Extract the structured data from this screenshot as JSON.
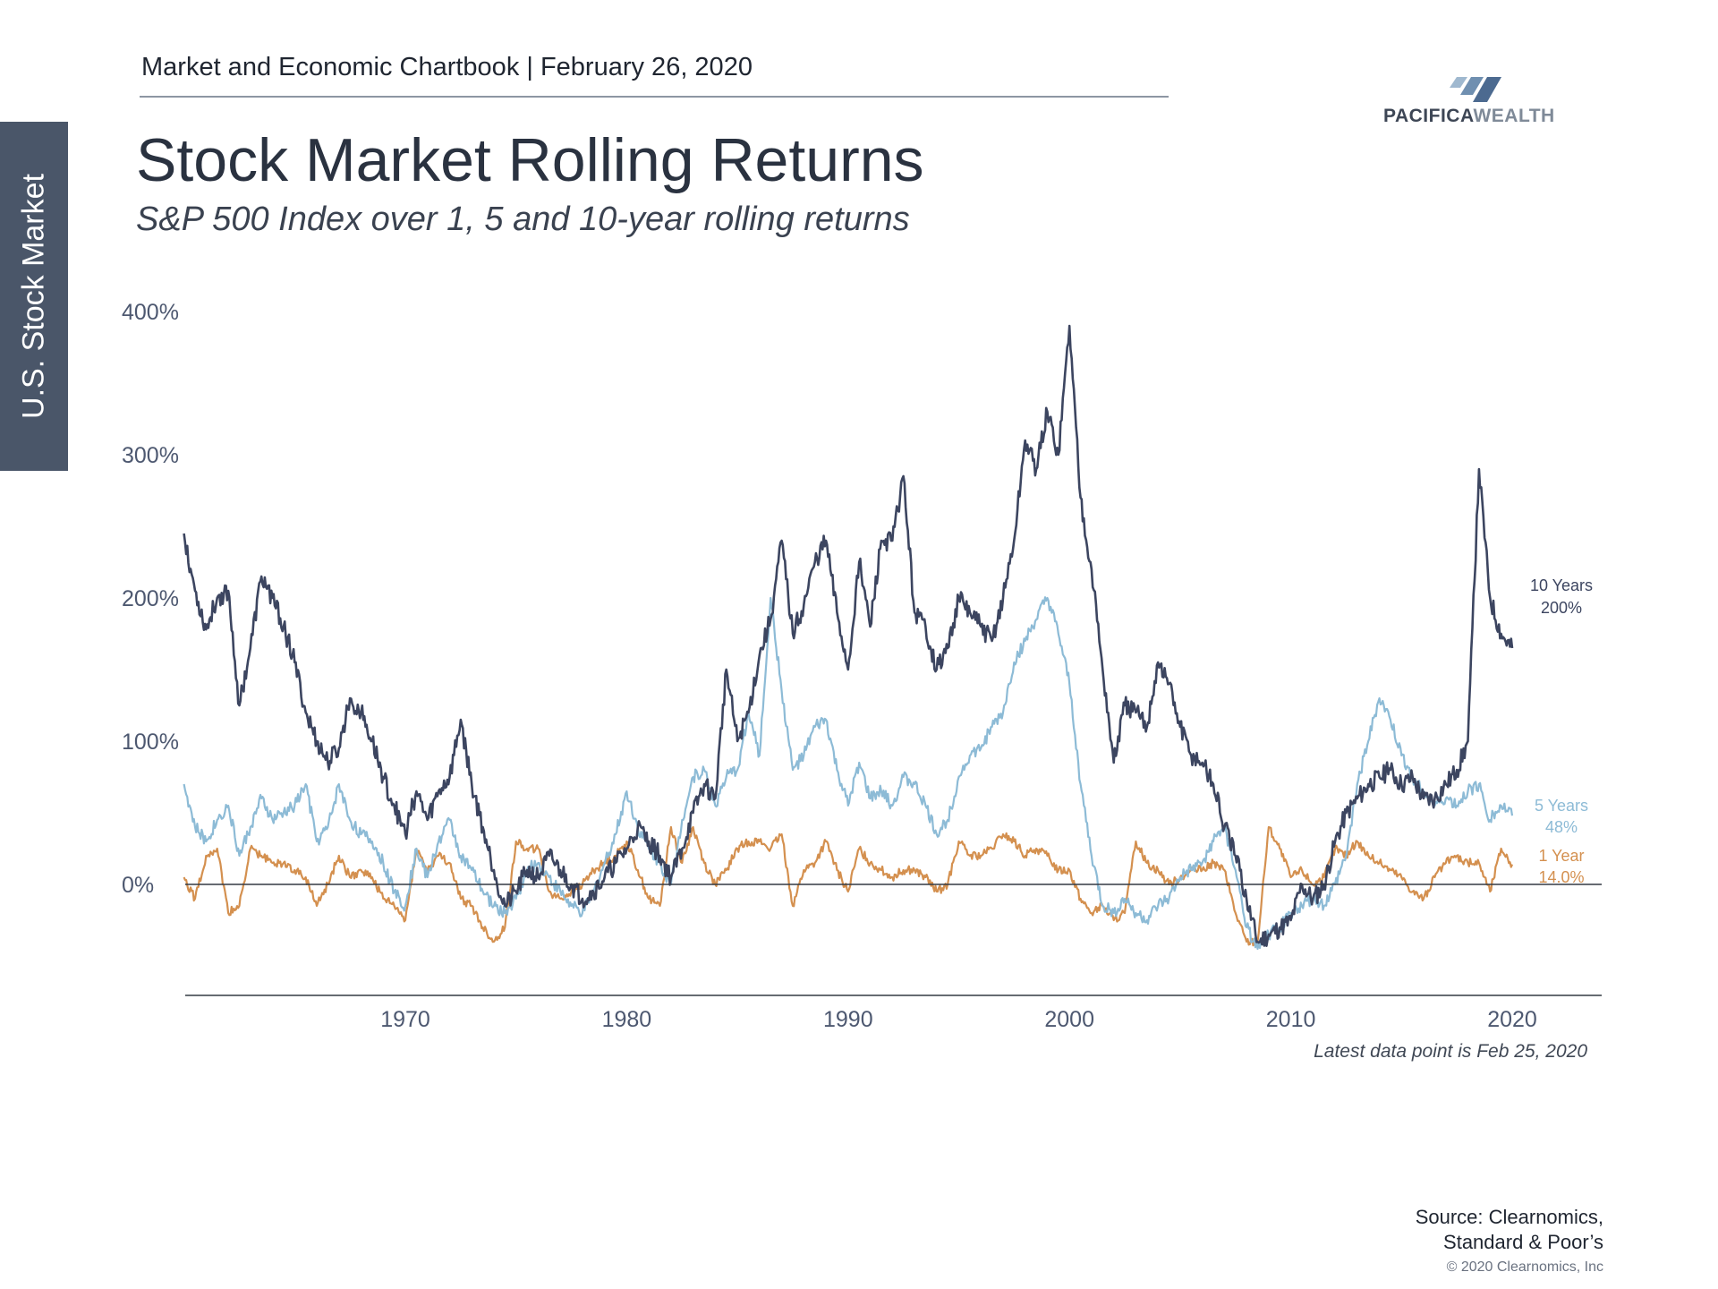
{
  "header": {
    "text": "Market and Economic Chartbook | February 26, 2020"
  },
  "sidebar": {
    "label": "U.S. Stock Market"
  },
  "logo": {
    "brand": "PACIFICA",
    "brand_accent": "WEALTH"
  },
  "title": "Stock Market Rolling Returns",
  "subtitle": "S&P 500 Index over 1, 5 and 10-year rolling returns",
  "footnote": "Latest data point is Feb 25, 2020",
  "source": {
    "line1": "Source: Clearnomics,",
    "line2": "Standard & Poor’s"
  },
  "copyright": "© 2020 Clearnomics, Inc",
  "colors": {
    "ten_year": "#3c4560",
    "five_year": "#8dbbd6",
    "one_year": "#d4904f",
    "axis": "#333a44",
    "tick_label": "#4d5870",
    "sidebar": "#4a5669"
  },
  "chart_data": {
    "type": "line",
    "title": "Stock Market Rolling Returns",
    "ylim": [
      -75,
      400
    ],
    "y_ticks": [
      0,
      100,
      200,
      300,
      400
    ],
    "y_tick_labels": [
      "0%",
      "100%",
      "200%",
      "300%",
      "400%"
    ],
    "xlim": [
      1960,
      2024
    ],
    "x_ticks": [
      1970,
      1980,
      1990,
      2000,
      2010,
      2020
    ],
    "x_tick_labels": [
      "1970",
      "1980",
      "1990",
      "2000",
      "2010",
      "2020"
    ],
    "grid": false,
    "zero_line": true,
    "series": [
      {
        "name": "10 Years",
        "end_label": "200%",
        "x": [
          1960.0,
          1960.5,
          1961.0,
          1961.5,
          1962.0,
          1962.5,
          1963.0,
          1963.5,
          1964.0,
          1964.5,
          1965.0,
          1965.5,
          1966.0,
          1966.5,
          1967.0,
          1967.5,
          1968.0,
          1968.5,
          1969.0,
          1969.5,
          1970.0,
          1970.5,
          1971.0,
          1971.5,
          1972.0,
          1972.5,
          1973.0,
          1973.5,
          1974.0,
          1974.5,
          1975.0,
          1975.5,
          1976.0,
          1976.5,
          1977.0,
          1977.5,
          1978.0,
          1978.5,
          1979.0,
          1979.5,
          1980.0,
          1980.5,
          1981.0,
          1981.5,
          1982.0,
          1982.5,
          1983.0,
          1983.5,
          1984.0,
          1984.5,
          1985.0,
          1985.5,
          1986.0,
          1986.5,
          1987.0,
          1987.5,
          1988.0,
          1988.5,
          1989.0,
          1989.5,
          1990.0,
          1990.5,
          1991.0,
          1991.5,
          1992.0,
          1992.5,
          1993.0,
          1993.5,
          1994.0,
          1994.5,
          1995.0,
          1995.5,
          1996.0,
          1996.5,
          1997.0,
          1997.5,
          1998.0,
          1998.5,
          1999.0,
          1999.5,
          2000.0,
          2000.5,
          2001.0,
          2001.5,
          2002.0,
          2002.5,
          2003.0,
          2003.5,
          2004.0,
          2004.5,
          2005.0,
          2005.5,
          2006.0,
          2006.5,
          2007.0,
          2007.5,
          2008.0,
          2008.5,
          2009.0,
          2009.5,
          2010.0,
          2010.5,
          2011.0,
          2011.5,
          2012.0,
          2012.5,
          2013.0,
          2013.5,
          2014.0,
          2014.5,
          2015.0,
          2015.5,
          2016.0,
          2016.5,
          2017.0,
          2017.5,
          2018.0,
          2018.5,
          2019.0,
          2019.5,
          2020.0
        ],
        "values": [
          245,
          205,
          178,
          200,
          205,
          125,
          165,
          215,
          200,
          180,
          155,
          120,
          100,
          85,
          95,
          130,
          120,
          100,
          75,
          55,
          35,
          65,
          45,
          65,
          75,
          115,
          70,
          40,
          10,
          -15,
          -5,
          10,
          5,
          20,
          10,
          0,
          -10,
          -5,
          5,
          15,
          25,
          40,
          30,
          20,
          5,
          25,
          50,
          70,
          60,
          150,
          100,
          120,
          160,
          185,
          240,
          175,
          195,
          225,
          240,
          190,
          150,
          225,
          180,
          240,
          240,
          285,
          190,
          180,
          150,
          165,
          200,
          190,
          180,
          170,
          200,
          240,
          310,
          290,
          330,
          300,
          390,
          270,
          220,
          150,
          85,
          125,
          120,
          110,
          155,
          140,
          110,
          90,
          85,
          70,
          40,
          20,
          -10,
          -40,
          -35,
          -30,
          -25,
          0,
          -10,
          0,
          30,
          50,
          60,
          70,
          75,
          80,
          70,
          75,
          60,
          60,
          70,
          80,
          100,
          290,
          200,
          175,
          165
        ],
        "last_value": 200
      },
      {
        "name": "5 Years",
        "end_label": "48%",
        "x": [
          1960.0,
          1960.5,
          1961.0,
          1961.5,
          1962.0,
          1962.5,
          1963.0,
          1963.5,
          1964.0,
          1964.5,
          1965.0,
          1965.5,
          1966.0,
          1966.5,
          1967.0,
          1967.5,
          1968.0,
          1968.5,
          1969.0,
          1969.5,
          1970.0,
          1970.5,
          1971.0,
          1971.5,
          1972.0,
          1972.5,
          1973.0,
          1973.5,
          1974.0,
          1974.5,
          1975.0,
          1975.5,
          1976.0,
          1976.5,
          1977.0,
          1977.5,
          1978.0,
          1978.5,
          1979.0,
          1979.5,
          1980.0,
          1980.5,
          1981.0,
          1981.5,
          1982.0,
          1982.5,
          1983.0,
          1983.5,
          1984.0,
          1984.5,
          1985.0,
          1985.5,
          1986.0,
          1986.5,
          1987.0,
          1987.5,
          1988.0,
          1988.5,
          1989.0,
          1989.5,
          1990.0,
          1990.5,
          1991.0,
          1991.5,
          1992.0,
          1992.5,
          1993.0,
          1993.5,
          1994.0,
          1994.5,
          1995.0,
          1995.5,
          1996.0,
          1996.5,
          1997.0,
          1997.5,
          1998.0,
          1998.5,
          1999.0,
          1999.5,
          2000.0,
          2000.5,
          2001.0,
          2001.5,
          2002.0,
          2002.5,
          2003.0,
          2003.5,
          2004.0,
          2004.5,
          2005.0,
          2005.5,
          2006.0,
          2006.5,
          2007.0,
          2007.5,
          2008.0,
          2008.5,
          2009.0,
          2009.5,
          2010.0,
          2010.5,
          2011.0,
          2011.5,
          2012.0,
          2012.5,
          2013.0,
          2013.5,
          2014.0,
          2014.5,
          2015.0,
          2015.5,
          2016.0,
          2016.5,
          2017.0,
          2017.5,
          2018.0,
          2018.5,
          2019.0,
          2019.5,
          2020.0
        ],
        "values": [
          70,
          40,
          30,
          45,
          55,
          20,
          40,
          60,
          45,
          50,
          55,
          70,
          30,
          40,
          70,
          45,
          35,
          30,
          15,
          -5,
          -15,
          25,
          5,
          30,
          45,
          20,
          10,
          -5,
          -15,
          -20,
          -10,
          10,
          15,
          5,
          -5,
          -15,
          -20,
          -5,
          15,
          35,
          65,
          40,
          25,
          15,
          0,
          45,
          75,
          80,
          55,
          75,
          80,
          120,
          90,
          200,
          135,
          80,
          90,
          110,
          115,
          80,
          55,
          85,
          60,
          65,
          55,
          75,
          70,
          55,
          35,
          45,
          75,
          90,
          95,
          110,
          120,
          155,
          170,
          185,
          200,
          175,
          140,
          70,
          20,
          -15,
          -20,
          -10,
          -20,
          -25,
          -15,
          -10,
          5,
          10,
          15,
          30,
          40,
          10,
          -30,
          -45,
          -35,
          -30,
          -20,
          -15,
          -10,
          -15,
          0,
          20,
          70,
          100,
          130,
          115,
          90,
          75,
          65,
          55,
          60,
          55,
          65,
          70,
          45,
          55,
          48
        ],
        "last_value": 48
      },
      {
        "name": "1 Year",
        "end_label": "14.0%",
        "x": [
          1960.0,
          1960.5,
          1961.0,
          1961.5,
          1962.0,
          1962.5,
          1963.0,
          1963.5,
          1964.0,
          1964.5,
          1965.0,
          1965.5,
          1966.0,
          1966.5,
          1967.0,
          1967.5,
          1968.0,
          1968.5,
          1969.0,
          1969.5,
          1970.0,
          1970.5,
          1971.0,
          1971.5,
          1972.0,
          1972.5,
          1973.0,
          1973.5,
          1974.0,
          1974.5,
          1975.0,
          1975.5,
          1976.0,
          1976.5,
          1977.0,
          1977.5,
          1978.0,
          1978.5,
          1979.0,
          1979.5,
          1980.0,
          1980.5,
          1981.0,
          1981.5,
          1982.0,
          1982.5,
          1983.0,
          1983.5,
          1984.0,
          1984.5,
          1985.0,
          1985.5,
          1986.0,
          1986.5,
          1987.0,
          1987.5,
          1988.0,
          1988.5,
          1989.0,
          1989.5,
          1990.0,
          1990.5,
          1991.0,
          1991.5,
          1992.0,
          1992.5,
          1993.0,
          1993.5,
          1994.0,
          1994.5,
          1995.0,
          1995.5,
          1996.0,
          1996.5,
          1997.0,
          1997.5,
          1998.0,
          1998.5,
          1999.0,
          1999.5,
          2000.0,
          2000.5,
          2001.0,
          2001.5,
          2002.0,
          2002.5,
          2003.0,
          2003.5,
          2004.0,
          2004.5,
          2005.0,
          2005.5,
          2006.0,
          2006.5,
          2007.0,
          2007.5,
          2008.0,
          2008.5,
          2009.0,
          2009.5,
          2010.0,
          2010.5,
          2011.0,
          2011.5,
          2012.0,
          2012.5,
          2013.0,
          2013.5,
          2014.0,
          2014.5,
          2015.0,
          2015.5,
          2016.0,
          2016.5,
          2017.0,
          2017.5,
          2018.0,
          2018.5,
          2019.0,
          2019.5,
          2020.0
        ],
        "values": [
          5,
          -10,
          20,
          25,
          -20,
          -15,
          25,
          20,
          15,
          15,
          10,
          5,
          -15,
          0,
          20,
          5,
          10,
          5,
          -10,
          -15,
          -25,
          25,
          10,
          20,
          15,
          -10,
          -15,
          -30,
          -40,
          -30,
          30,
          25,
          25,
          -5,
          -10,
          -5,
          0,
          10,
          15,
          20,
          30,
          10,
          -10,
          -15,
          40,
          15,
          40,
          15,
          0,
          10,
          25,
          30,
          30,
          25,
          35,
          -15,
          10,
          15,
          30,
          10,
          -5,
          25,
          15,
          10,
          5,
          10,
          10,
          5,
          -5,
          0,
          30,
          20,
          20,
          25,
          35,
          30,
          20,
          25,
          20,
          10,
          10,
          -10,
          -20,
          -15,
          -25,
          -20,
          30,
          15,
          10,
          0,
          5,
          10,
          10,
          15,
          10,
          -20,
          -40,
          -40,
          40,
          25,
          5,
          10,
          0,
          5,
          25,
          20,
          30,
          20,
          15,
          10,
          5,
          -5,
          -10,
          5,
          15,
          20,
          15,
          15,
          -5,
          25,
          14
        ],
        "last_value": 14
      }
    ]
  }
}
